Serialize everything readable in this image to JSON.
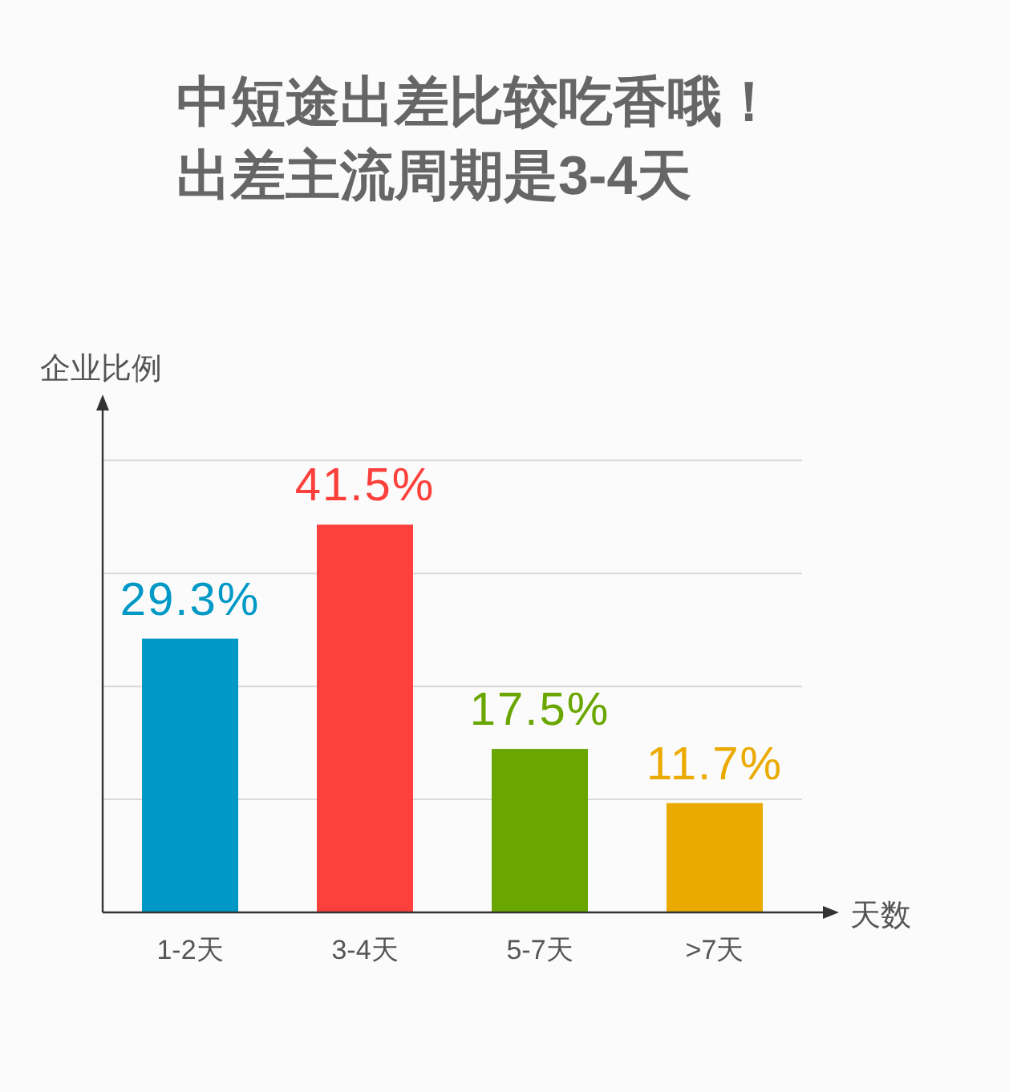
{
  "chart_data": {
    "type": "bar",
    "title": "中短途出差比较吃香哦！",
    "subtitle": "出差主流周期是3-4天",
    "xlabel": "天数",
    "ylabel": "企业比例",
    "categories": [
      "1-2天",
      "3-4天",
      "5-7天",
      ">7天"
    ],
    "values": [
      29.3,
      41.5,
      17.5,
      11.7
    ],
    "colors": [
      "#0099c6",
      "#fd403b",
      "#6aa600",
      "#eaaa00"
    ],
    "value_labels": [
      "29.3%",
      "41.5%",
      "17.5%",
      "11.7%"
    ],
    "grid": "y"
  }
}
